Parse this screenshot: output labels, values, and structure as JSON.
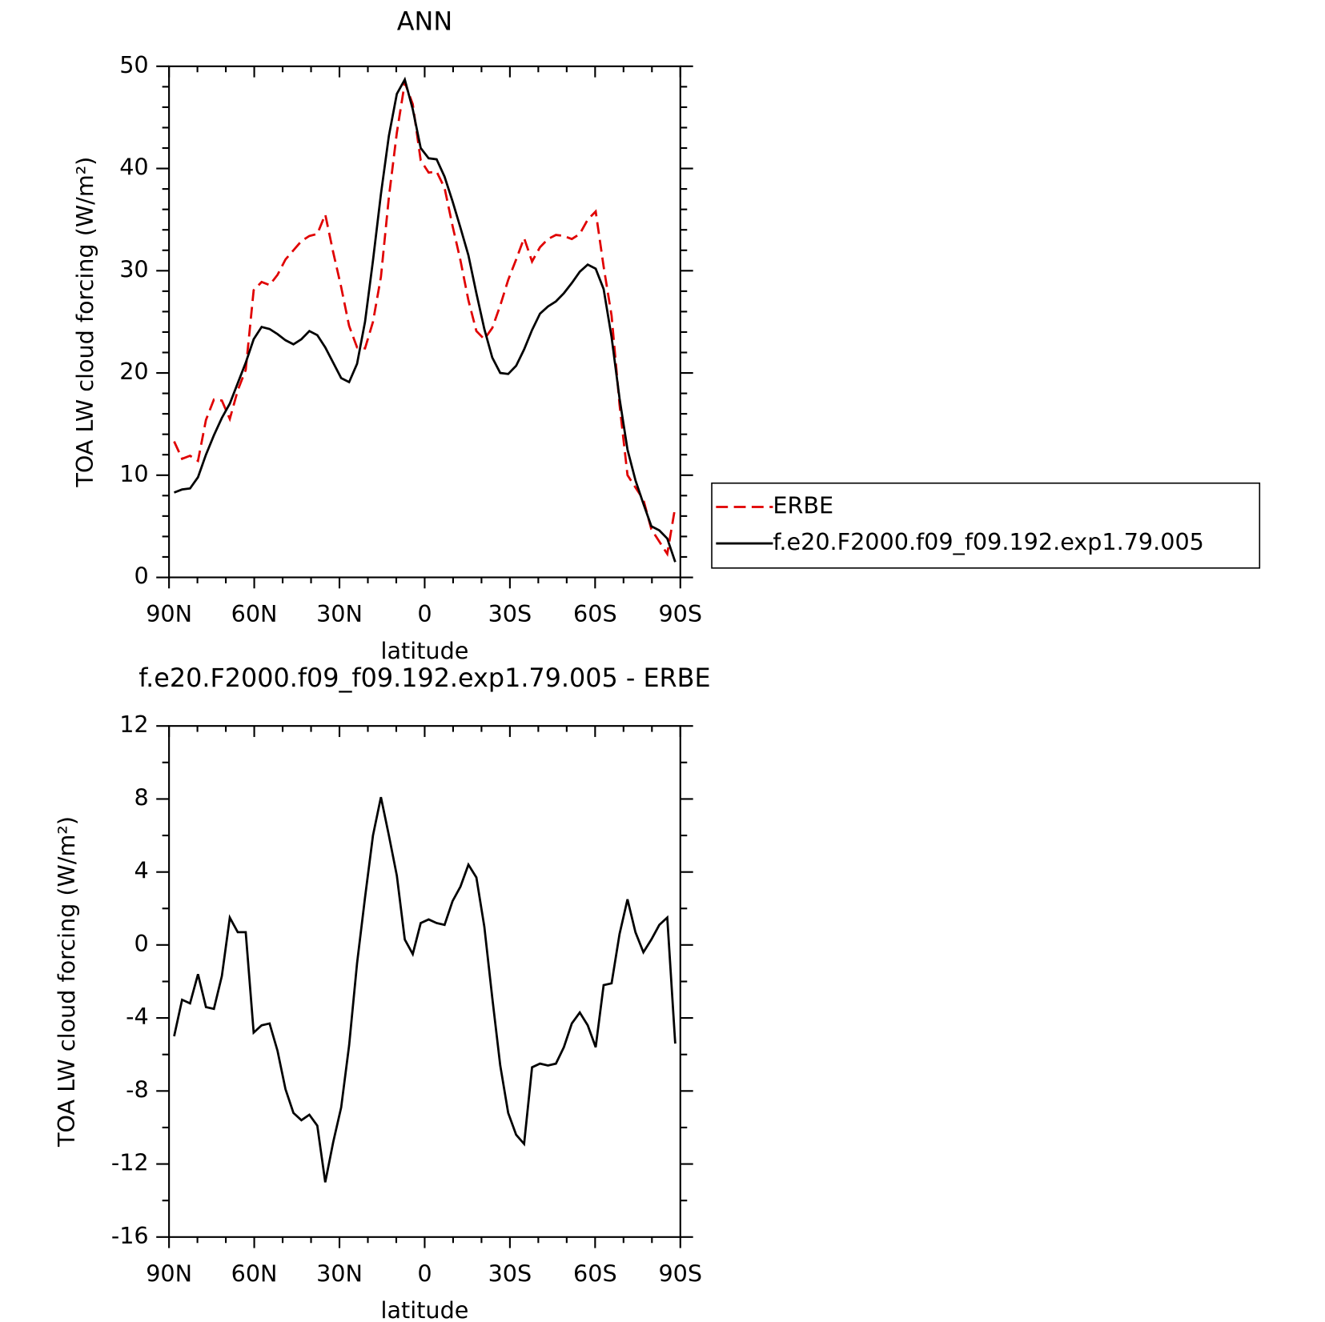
{
  "chart_data": [
    {
      "type": "line",
      "title": "ANN",
      "xlabel": "latitude",
      "ylabel": "TOA LW cloud forcing (W/m²)",
      "x": [
        88.2,
        85.4,
        82.6,
        79.8,
        77.0,
        74.2,
        71.4,
        68.6,
        65.8,
        63.0,
        60.2,
        57.4,
        54.6,
        51.8,
        49.0,
        46.2,
        43.4,
        40.6,
        37.8,
        35.0,
        32.2,
        29.4,
        26.6,
        23.8,
        21.0,
        18.2,
        15.4,
        12.6,
        9.8,
        7.0,
        4.2,
        1.4,
        -1.4,
        -4.2,
        -7.0,
        -9.8,
        -12.6,
        -15.4,
        -18.2,
        -21.0,
        -23.8,
        -26.6,
        -29.4,
        -32.2,
        -35.0,
        -37.8,
        -40.6,
        -43.4,
        -46.2,
        -49.0,
        -51.8,
        -54.6,
        -57.4,
        -60.2,
        -63.0,
        -65.8,
        -68.6,
        -71.4,
        -74.2,
        -77.0,
        -79.8,
        -82.6,
        -85.4,
        -88.2
      ],
      "series": [
        {
          "name": "ERBE",
          "color": "#e00000",
          "line_style": "dashed",
          "values": [
            13.3,
            11.6,
            11.9,
            11.4,
            15.4,
            17.4,
            17.3,
            15.5,
            18.3,
            20.3,
            28.1,
            28.9,
            28.6,
            29.6,
            31.1,
            32.0,
            32.9,
            33.4,
            33.6,
            35.5,
            31.8,
            28.4,
            24.6,
            22.5,
            22.4,
            25.0,
            29.4,
            37.2,
            43.5,
            48.4,
            46.3,
            40.8,
            39.6,
            39.7,
            38.1,
            34.4,
            31.0,
            27.1,
            24.1,
            23.3,
            24.4,
            26.6,
            29.1,
            31.1,
            33.2,
            30.9,
            32.3,
            33.1,
            33.5,
            33.4,
            33.1,
            33.6,
            35.0,
            35.8,
            30.4,
            25.6,
            16.9,
            10.0,
            8.8,
            7.6,
            4.7,
            3.5,
            2.3,
            6.9
          ]
        },
        {
          "name": "f.e20.F2000.f09_f09.192.exp1.79.005",
          "color": "#000000",
          "line_style": "solid",
          "values": [
            8.3,
            8.6,
            8.7,
            9.8,
            12.0,
            13.9,
            15.6,
            17.0,
            19.0,
            21.0,
            23.3,
            24.5,
            24.3,
            23.8,
            23.2,
            22.8,
            23.3,
            24.1,
            23.7,
            22.5,
            21.0,
            19.5,
            19.1,
            20.9,
            25.0,
            31.0,
            37.5,
            43.2,
            47.3,
            48.7,
            45.8,
            42.0,
            41.0,
            40.9,
            39.2,
            36.8,
            34.2,
            31.5,
            27.8,
            24.3,
            21.5,
            20.0,
            19.9,
            20.7,
            22.3,
            24.2,
            25.8,
            26.5,
            27.0,
            27.8,
            28.8,
            29.9,
            30.6,
            30.2,
            28.2,
            23.5,
            17.5,
            12.5,
            9.5,
            7.2,
            5.0,
            4.6,
            3.8,
            1.5
          ]
        }
      ],
      "xlim": [
        90,
        -90
      ],
      "xticks": [
        {
          "value": 90,
          "label": "90N"
        },
        {
          "value": 60,
          "label": "60N"
        },
        {
          "value": 30,
          "label": "30N"
        },
        0,
        {
          "value": -30,
          "label": "30S"
        },
        {
          "value": -60,
          "label": "60S"
        },
        {
          "value": -90,
          "label": "90S"
        }
      ],
      "ylim": [
        0,
        50
      ],
      "yticks": [
        0,
        10,
        20,
        30,
        40,
        50
      ],
      "legend": "right"
    },
    {
      "type": "line",
      "title": "f.e20.F2000.f09_f09.192.exp1.79.005 - ERBE",
      "xlabel": "latitude",
      "ylabel": "TOA LW cloud forcing (W/m²)",
      "x": [
        88.2,
        85.4,
        82.6,
        79.8,
        77.0,
        74.2,
        71.4,
        68.6,
        65.8,
        63.0,
        60.2,
        57.4,
        54.6,
        51.8,
        49.0,
        46.2,
        43.4,
        40.6,
        37.8,
        35.0,
        32.2,
        29.4,
        26.6,
        23.8,
        21.0,
        18.2,
        15.4,
        12.6,
        9.8,
        7.0,
        4.2,
        1.4,
        -1.4,
        -4.2,
        -7.0,
        -9.8,
        -12.6,
        -15.4,
        -18.2,
        -21.0,
        -23.8,
        -26.6,
        -29.4,
        -32.2,
        -35.0,
        -37.8,
        -40.6,
        -43.4,
        -46.2,
        -49.0,
        -51.8,
        -54.6,
        -57.4,
        -60.2,
        -63.0,
        -65.8,
        -68.6,
        -71.4,
        -74.2,
        -77.0,
        -79.8,
        -82.6,
        -85.4,
        -88.2
      ],
      "series": [
        {
          "color": "#000000",
          "line_style": "solid",
          "values": [
            -5.0,
            -3.0,
            -3.2,
            -1.6,
            -3.4,
            -3.5,
            -1.7,
            1.5,
            0.7,
            0.7,
            -4.8,
            -4.4,
            -4.3,
            -5.8,
            -7.9,
            -9.2,
            -9.6,
            -9.3,
            -9.9,
            -13.0,
            -10.8,
            -8.9,
            -5.5,
            -1.0,
            2.6,
            6.0,
            8.1,
            6.0,
            3.8,
            0.3,
            -0.5,
            1.2,
            1.4,
            1.2,
            1.1,
            2.4,
            3.2,
            4.4,
            3.7,
            1.0,
            -2.9,
            -6.6,
            -9.2,
            -10.4,
            -10.9,
            -6.7,
            -6.5,
            -6.6,
            -6.5,
            -5.6,
            -4.3,
            -3.7,
            -4.4,
            -5.6,
            -2.2,
            -2.1,
            0.6,
            2.5,
            0.7,
            -0.4,
            0.3,
            1.1,
            1.5,
            -5.4
          ]
        }
      ],
      "xlim": [
        90,
        -90
      ],
      "xticks": [
        {
          "value": 90,
          "label": "90N"
        },
        {
          "value": 60,
          "label": "60N"
        },
        {
          "value": 30,
          "label": "30N"
        },
        0,
        {
          "value": -30,
          "label": "30S"
        },
        {
          "value": -60,
          "label": "60S"
        },
        {
          "value": -90,
          "label": "90S"
        }
      ],
      "ylim": [
        -16,
        12
      ],
      "yticks": [
        -16,
        -12,
        -8,
        -4,
        0,
        4,
        8,
        12
      ]
    }
  ]
}
